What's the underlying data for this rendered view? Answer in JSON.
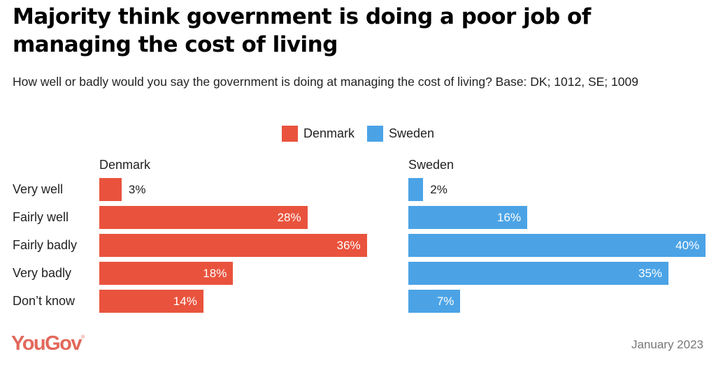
{
  "chart_data": {
    "type": "bar",
    "orientation": "horizontal",
    "title": "Majority think government is doing a poor job of managing the cost of living",
    "subtitle": "How well or badly would you say the government is doing at managing the cost of living? Base: DK; 1012, SE; 1009",
    "categories": [
      "Very well",
      "Fairly well",
      "Fairly badly",
      "Very badly",
      "Don’t know"
    ],
    "series": [
      {
        "name": "Denmark",
        "color": "#e9533d",
        "values": [
          3,
          28,
          36,
          18,
          14
        ],
        "labels": [
          "3%",
          "28%",
          "36%",
          "18%",
          "14%"
        ]
      },
      {
        "name": "Sweden",
        "color": "#4ba3e6",
        "values": [
          2,
          16,
          40,
          35,
          7
        ],
        "labels": [
          "2%",
          "16%",
          "40%",
          "35%",
          "7%"
        ]
      }
    ],
    "legend": {
      "position": "top-center",
      "entries": [
        "Denmark",
        "Sweden"
      ]
    },
    "panels": [
      "Denmark",
      "Sweden"
    ],
    "xlabel": "",
    "ylabel": "",
    "xlim": [
      0,
      40
    ],
    "grid": false,
    "unit": "%"
  },
  "footer": {
    "brand": "YouGov",
    "brand_mark": "®",
    "date": "January 2023"
  }
}
